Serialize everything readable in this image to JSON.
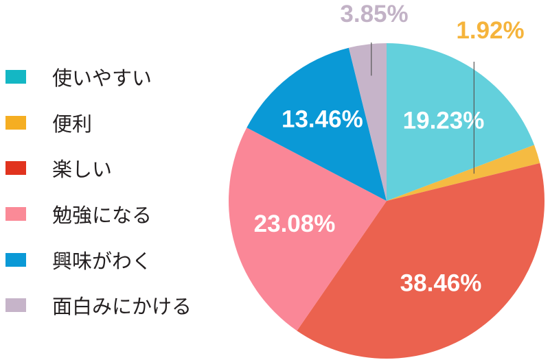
{
  "chart_data": {
    "type": "pie",
    "categories": [
      "使いやすい",
      "便利",
      "楽しい",
      "勉強になる",
      "興味がわく",
      "面白みにかける"
    ],
    "values": [
      19.23,
      1.92,
      38.46,
      23.08,
      13.46,
      3.85
    ],
    "value_labels": [
      "19.23%",
      "1.92%",
      "38.46%",
      "23.08%",
      "13.46%",
      "3.85%"
    ],
    "colors": [
      "#63d0dc",
      "#f5bb42",
      "#eb624f",
      "#fa8797",
      "#0a99d6",
      "#c6b4c9"
    ],
    "legend_colors": [
      "#14b7c4",
      "#f5ae22",
      "#e1331e",
      "#fa8a97",
      "#0a99d6",
      "#c6b4c9"
    ],
    "legend_position": "left",
    "title": ""
  }
}
